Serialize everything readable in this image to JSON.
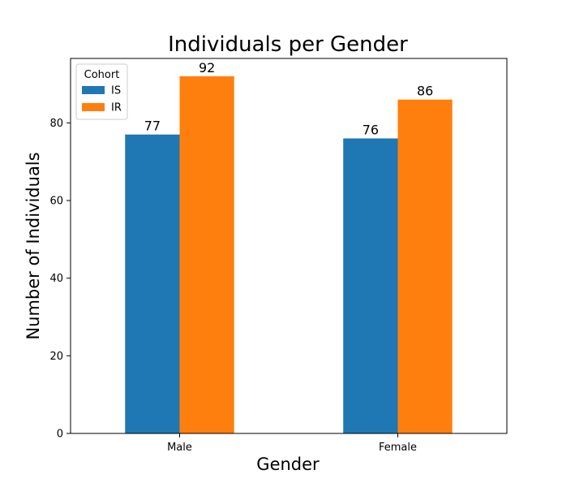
{
  "chart_data": {
    "type": "bar",
    "title": "Individuals per Gender",
    "xlabel": "Gender",
    "ylabel": "Number of Individuals",
    "categories": [
      "Male",
      "Female"
    ],
    "series": [
      {
        "name": "IS",
        "values": [
          77,
          76
        ],
        "color": "#1f77b4"
      },
      {
        "name": "IR",
        "values": [
          92,
          86
        ],
        "color": "#ff7f0e"
      }
    ],
    "ylim": [
      0,
      96.6
    ],
    "yticks": [
      0,
      20,
      40,
      60,
      80
    ],
    "grid": false,
    "legend": {
      "title": "Cohort",
      "placement": "upper-left"
    }
  }
}
